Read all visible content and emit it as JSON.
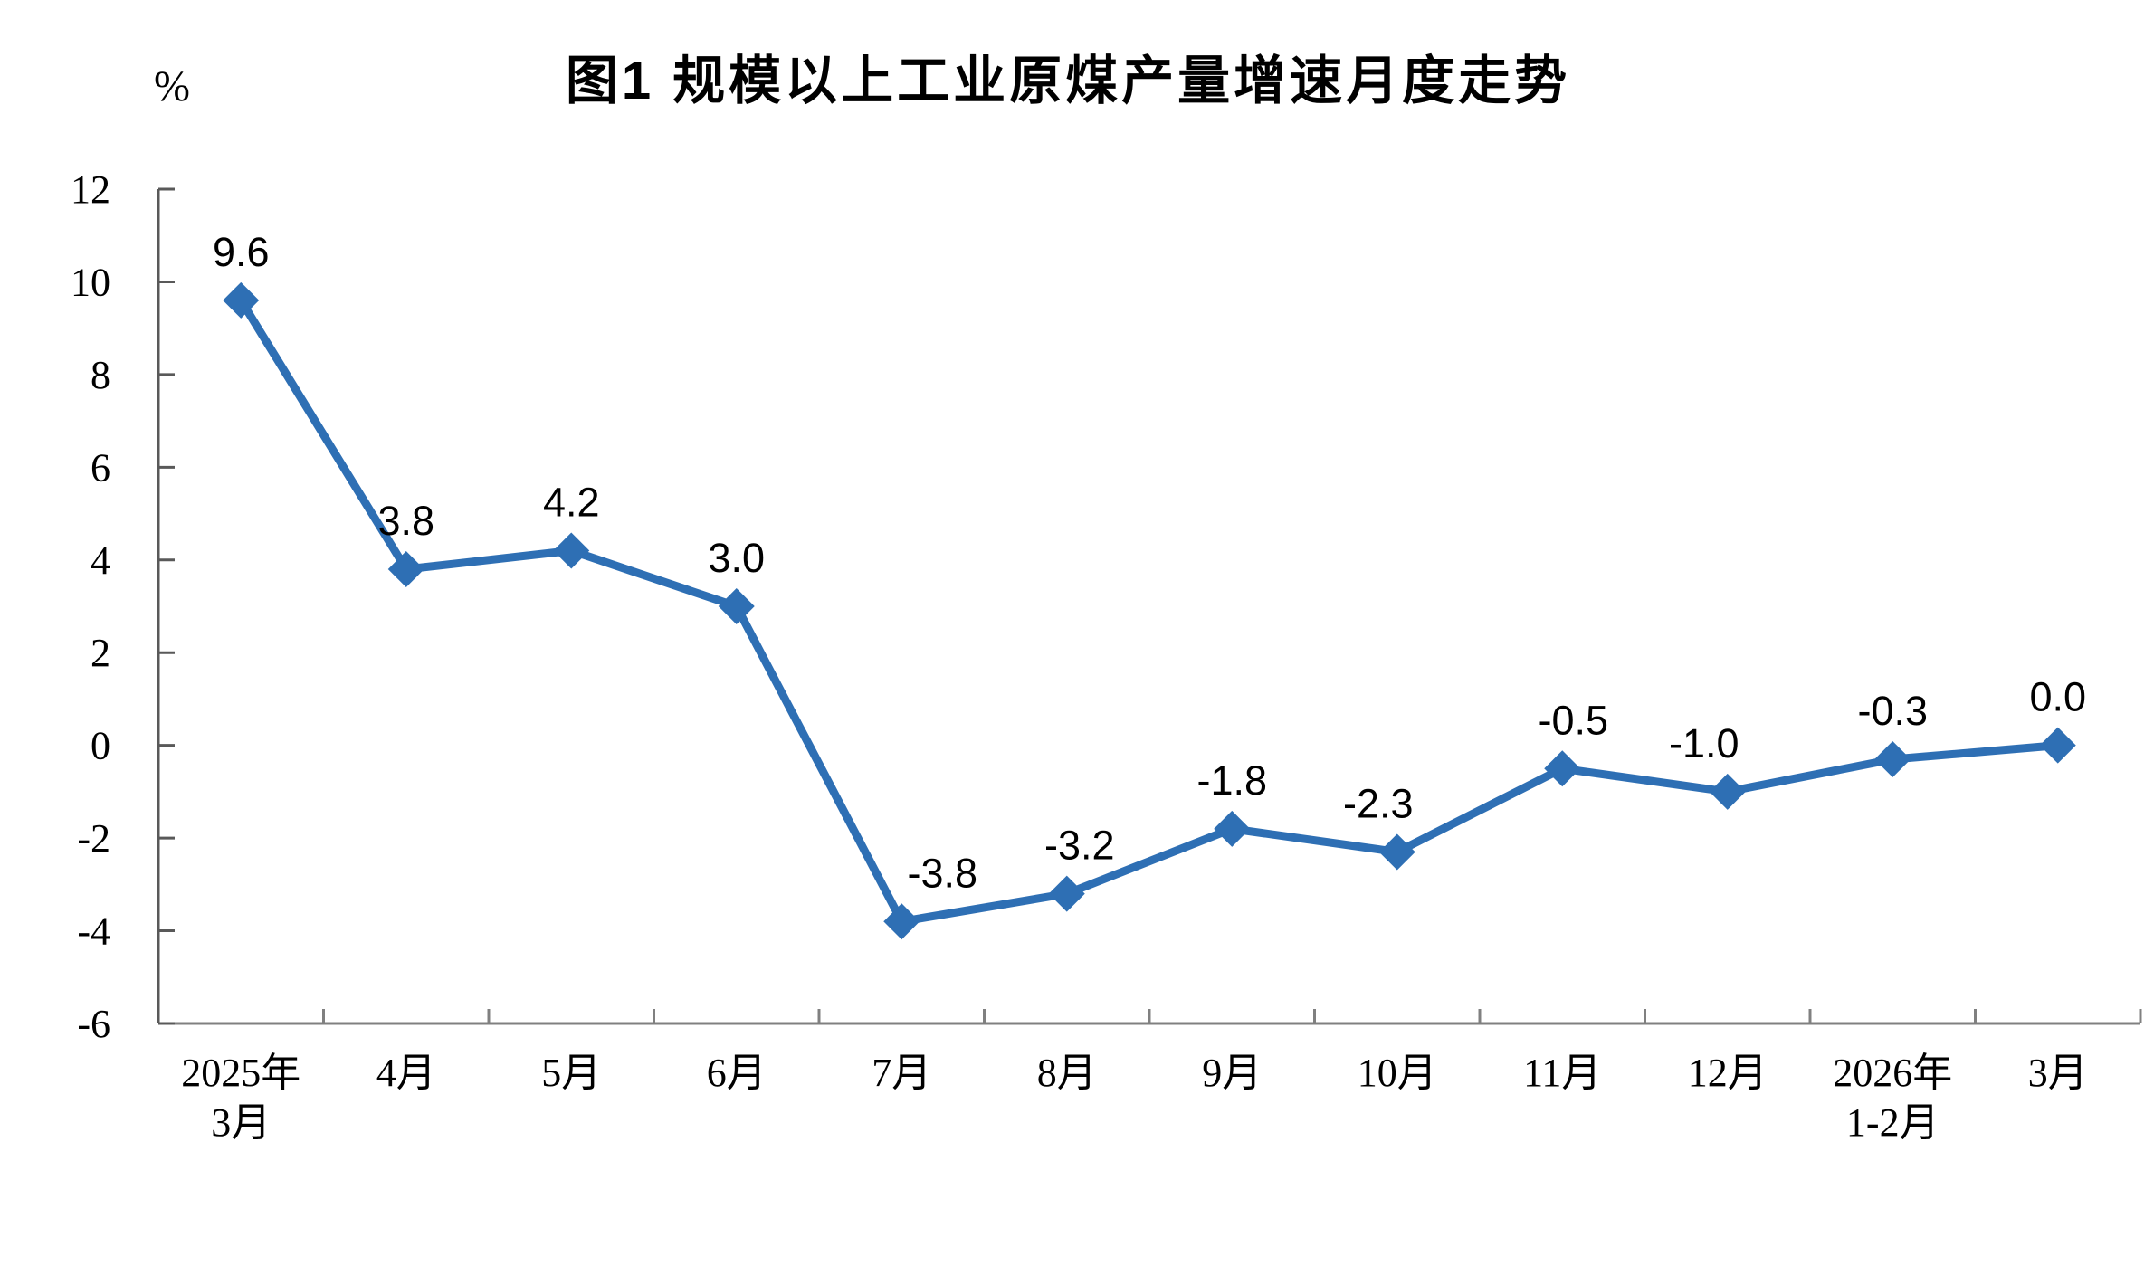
{
  "chart_data": {
    "type": "line",
    "title": "图1 规模以上工业原煤产量增速月度走势",
    "unit": "%",
    "categories": [
      [
        "2025年",
        "3月"
      ],
      [
        "4月"
      ],
      [
        "5月"
      ],
      [
        "6月"
      ],
      [
        "7月"
      ],
      [
        "8月"
      ],
      [
        "9月"
      ],
      [
        "10月"
      ],
      [
        "11月"
      ],
      [
        "12月"
      ],
      [
        "2026年",
        "1-2月"
      ],
      [
        "3月"
      ]
    ],
    "values": [
      9.6,
      3.8,
      4.2,
      3.0,
      -3.8,
      -3.2,
      -1.8,
      -2.3,
      -0.5,
      -1.0,
      -0.3,
      0.0
    ],
    "point_labels": [
      "9.6",
      "3.8",
      "4.2",
      "3.0",
      "-3.8",
      "-3.2",
      "-1.8",
      "-2.3",
      "-0.5",
      "-1.0",
      "-0.3",
      "0.0"
    ],
    "ylim": [
      -6,
      12
    ],
    "y_ticks": [
      12,
      10,
      8,
      6,
      4,
      2,
      0,
      -2,
      -4,
      -6
    ],
    "grid": false,
    "legend": "none",
    "colors": {
      "line": "#2E6FB4",
      "marker": "#2E6FB4",
      "label_text": "#000000",
      "y_axis": "#595959",
      "x_axis": "#808080"
    },
    "layout": {
      "point_label_dx": [
        0,
        0,
        0,
        0,
        45,
        14,
        0,
        -21,
        12,
        -26,
        0,
        0
      ],
      "point_label_dy": -38
    }
  }
}
